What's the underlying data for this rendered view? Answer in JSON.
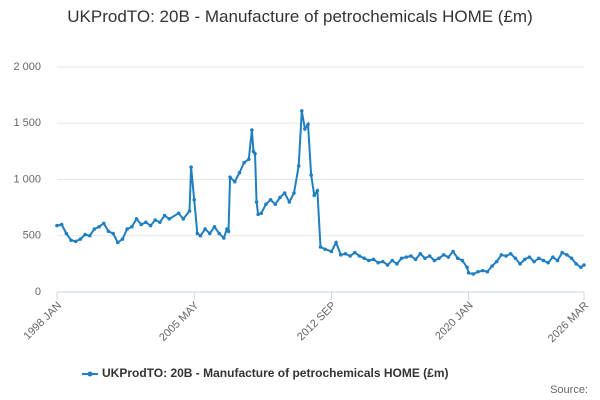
{
  "chart_data": {
    "type": "line",
    "title": "UKProdTO: 20B - Manufacture of petrochemicals HOME (£m)",
    "source": "Source:",
    "x": [
      "1998-01",
      "1998-04",
      "1998-07",
      "1998-10",
      "1999-01",
      "1999-04",
      "1999-07",
      "1999-10",
      "2000-01",
      "2000-04",
      "2000-07",
      "2000-10",
      "2001-01",
      "2001-04",
      "2001-07",
      "2001-10",
      "2002-01",
      "2002-04",
      "2002-07",
      "2002-10",
      "2003-01",
      "2003-04",
      "2003-07",
      "2003-10",
      "2004-01",
      "2004-07",
      "2004-10",
      "2005-02",
      "2005-03",
      "2005-05",
      "2005-07",
      "2005-09",
      "2005-12",
      "2006-03",
      "2006-06",
      "2006-09",
      "2006-12",
      "2007-02",
      "2007-03",
      "2007-04",
      "2007-07",
      "2007-10",
      "2008-01",
      "2008-04",
      "2008-06",
      "2008-07",
      "2008-08",
      "2008-09",
      "2008-10",
      "2008-12",
      "2009-03",
      "2009-06",
      "2009-09",
      "2009-12",
      "2010-03",
      "2010-06",
      "2010-09",
      "2010-12",
      "2011-02",
      "2011-04",
      "2011-06",
      "2011-08",
      "2011-10",
      "2011-12",
      "2012-02",
      "2012-05",
      "2012-09",
      "2012-12",
      "2013-03",
      "2013-06",
      "2013-09",
      "2013-12",
      "2014-03",
      "2014-06",
      "2014-09",
      "2014-12",
      "2015-03",
      "2015-06",
      "2015-09",
      "2015-12",
      "2016-03",
      "2016-06",
      "2016-09",
      "2016-12",
      "2017-03",
      "2017-06",
      "2017-09",
      "2017-12",
      "2018-03",
      "2018-06",
      "2018-09",
      "2018-12",
      "2019-03",
      "2019-06",
      "2019-09",
      "2019-12",
      "2020-01",
      "2020-04",
      "2020-07",
      "2020-10",
      "2021-01",
      "2021-04",
      "2021-07",
      "2021-10",
      "2022-01",
      "2022-04",
      "2022-07",
      "2022-10",
      "2023-01",
      "2023-04",
      "2023-07",
      "2023-10",
      "2024-01",
      "2024-04",
      "2024-07",
      "2024-10",
      "2025-01",
      "2025-04",
      "2025-07",
      "2025-10",
      "2026-01",
      "2026-03"
    ],
    "series": [
      {
        "name": "UKProdTO: 20B - Manufacture of petrochemicals HOME (£m)",
        "color": "#1f7fc0",
        "values": [
          590,
          600,
          520,
          460,
          450,
          470,
          510,
          500,
          560,
          580,
          610,
          540,
          520,
          440,
          470,
          560,
          580,
          650,
          600,
          620,
          590,
          640,
          620,
          680,
          650,
          700,
          650,
          720,
          1110,
          820,
          520,
          500,
          560,
          520,
          580,
          520,
          480,
          560,
          540,
          1020,
          980,
          1060,
          1150,
          1180,
          1440,
          1250,
          1230,
          800,
          690,
          700,
          780,
          820,
          780,
          840,
          880,
          800,
          880,
          1120,
          1610,
          1450,
          1490,
          1040,
          860,
          900,
          400,
          380,
          360,
          440,
          330,
          340,
          320,
          350,
          320,
          300,
          280,
          290,
          260,
          270,
          240,
          280,
          250,
          300,
          310,
          320,
          290,
          340,
          300,
          320,
          280,
          300,
          330,
          310,
          360,
          300,
          280,
          220,
          170,
          160,
          180,
          190,
          180,
          230,
          270,
          330,
          320,
          340,
          300,
          250,
          290,
          310,
          270,
          300,
          280,
          260,
          310,
          280,
          350,
          330,
          300,
          250,
          220,
          240
        ]
      }
    ],
    "xlim": [
      "1998-01",
      "2026-03"
    ],
    "xticks": [
      {
        "value": "1998-01",
        "label": "1998 JAN"
      },
      {
        "value": "2005-05",
        "label": "2005 MAY"
      },
      {
        "value": "2012-09",
        "label": "2012 SEP"
      },
      {
        "value": "2020-01",
        "label": "2020 JAN"
      },
      {
        "value": "2026-03",
        "label": "2026 MAR"
      }
    ],
    "ylim": [
      0,
      2000
    ],
    "yticks": [
      0,
      500,
      {
        "value": 1000,
        "label": "1 000"
      },
      {
        "value": 1500,
        "label": "1 500"
      },
      {
        "value": 2000,
        "label": "2 000"
      }
    ],
    "grid": true
  }
}
